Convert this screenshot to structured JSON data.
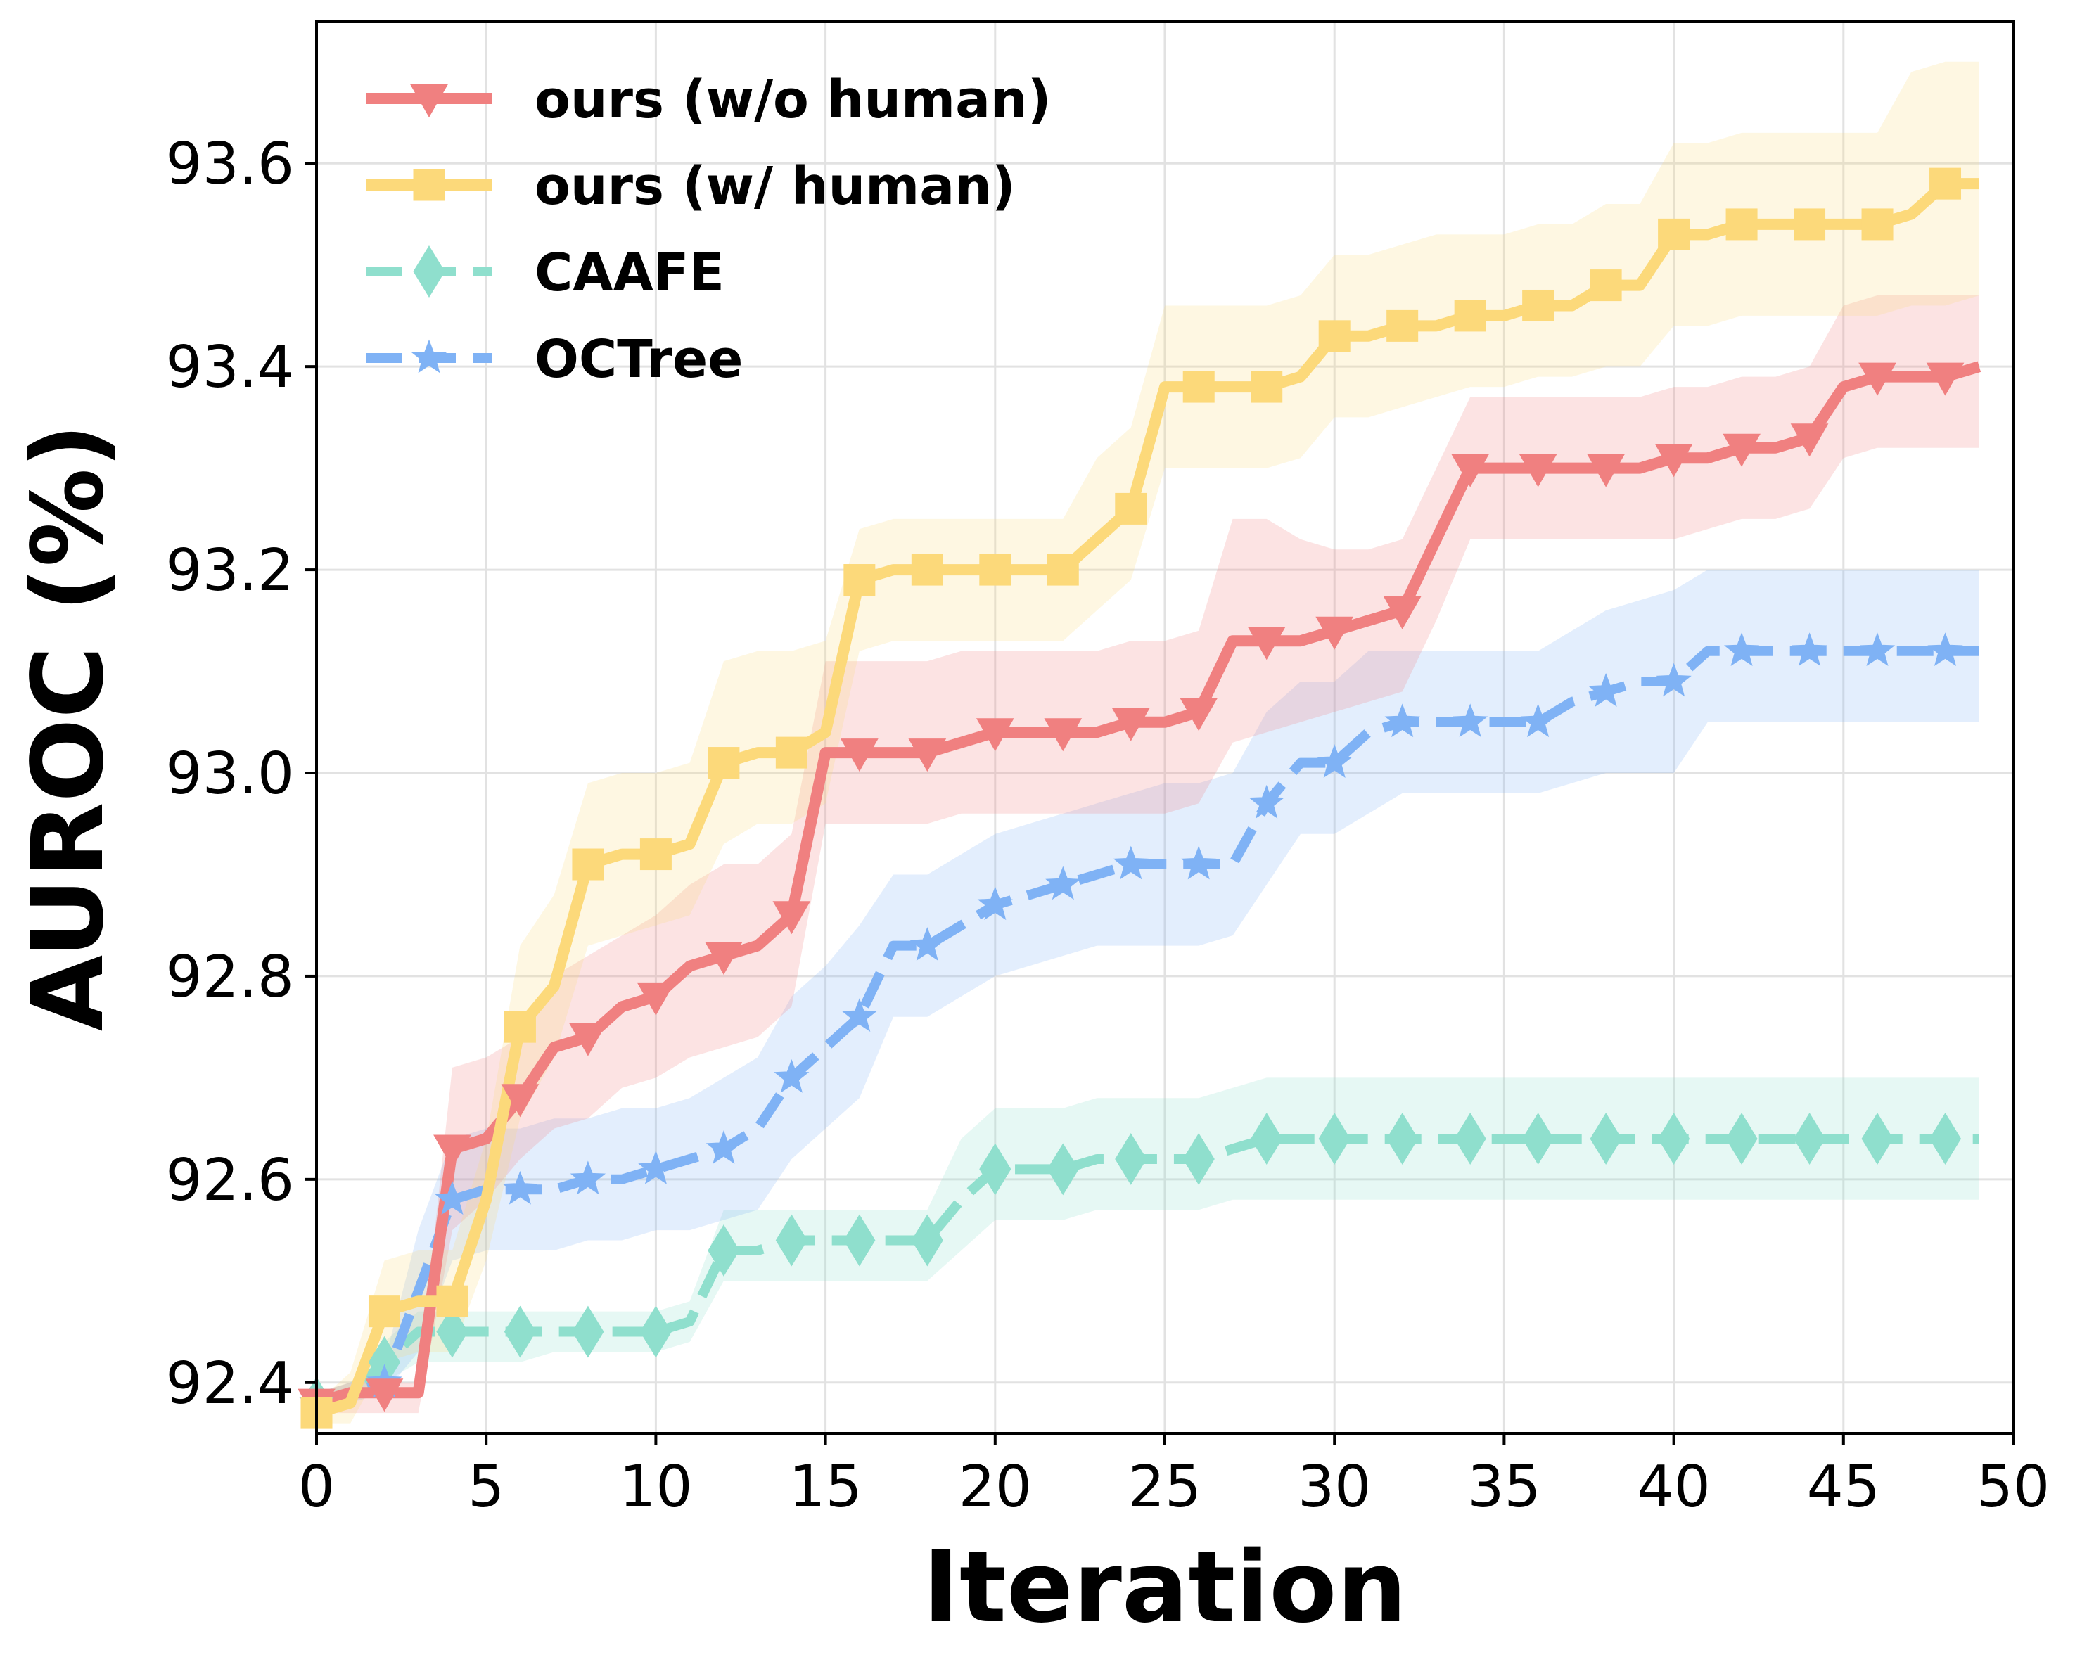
{
  "chart_data": {
    "type": "line",
    "title": "",
    "xlabel": "Iteration",
    "ylabel": "AUROC (%)",
    "xlim": [
      0,
      50
    ],
    "ylim": [
      92.35,
      93.74
    ],
    "xticks": [
      0,
      5,
      10,
      15,
      20,
      25,
      30,
      35,
      40,
      45,
      50
    ],
    "yticks": [
      92.4,
      92.6,
      92.8,
      93.0,
      93.2,
      93.4,
      93.6
    ],
    "ytick_labels": [
      "92.4",
      "92.6",
      "92.8",
      "93.0",
      "93.2",
      "93.4",
      "93.6"
    ],
    "grid": true,
    "legend_position": "top-left",
    "series": [
      {
        "name": "ours (w/o human)",
        "color": "#f08080",
        "marker": "triangle-down",
        "linestyle": "solid",
        "x": [
          0,
          1,
          2,
          3,
          4,
          5,
          6,
          7,
          8,
          9,
          10,
          11,
          12,
          13,
          14,
          15,
          16,
          17,
          18,
          19,
          20,
          21,
          22,
          23,
          24,
          25,
          26,
          27,
          28,
          29,
          30,
          31,
          32,
          33,
          34,
          35,
          36,
          37,
          38,
          39,
          40,
          41,
          42,
          43,
          44,
          45,
          46,
          47,
          48,
          49
        ],
        "values": [
          92.38,
          92.39,
          92.39,
          92.39,
          92.63,
          92.64,
          92.68,
          92.73,
          92.74,
          92.77,
          92.78,
          92.81,
          92.82,
          92.83,
          92.86,
          93.02,
          93.02,
          93.02,
          93.02,
          93.03,
          93.04,
          93.04,
          93.04,
          93.04,
          93.05,
          93.05,
          93.06,
          93.13,
          93.13,
          93.13,
          93.14,
          93.15,
          93.16,
          93.23,
          93.3,
          93.3,
          93.3,
          93.3,
          93.3,
          93.3,
          93.31,
          93.31,
          93.32,
          93.32,
          93.33,
          93.38,
          93.39,
          93.39,
          93.39,
          93.4
        ],
        "lower": [
          92.37,
          92.37,
          92.37,
          92.37,
          92.55,
          92.58,
          92.62,
          92.65,
          92.66,
          92.69,
          92.7,
          92.72,
          92.73,
          92.74,
          92.77,
          92.95,
          92.95,
          92.95,
          92.95,
          92.96,
          92.96,
          92.96,
          92.96,
          92.96,
          92.96,
          92.96,
          92.97,
          93.03,
          93.04,
          93.05,
          93.06,
          93.07,
          93.08,
          93.15,
          93.23,
          93.23,
          93.23,
          93.23,
          93.23,
          93.23,
          93.23,
          93.24,
          93.25,
          93.25,
          93.26,
          93.31,
          93.32,
          93.32,
          93.32,
          93.32
        ],
        "upper": [
          92.39,
          92.4,
          92.4,
          92.4,
          92.71,
          92.72,
          92.74,
          92.8,
          92.82,
          92.84,
          92.86,
          92.89,
          92.91,
          92.91,
          92.94,
          93.11,
          93.11,
          93.11,
          93.11,
          93.12,
          93.12,
          93.12,
          93.12,
          93.12,
          93.13,
          93.13,
          93.14,
          93.25,
          93.25,
          93.23,
          93.22,
          93.22,
          93.23,
          93.3,
          93.37,
          93.37,
          93.37,
          93.37,
          93.37,
          93.37,
          93.38,
          93.38,
          93.39,
          93.39,
          93.4,
          93.46,
          93.47,
          93.47,
          93.47,
          93.47
        ]
      },
      {
        "name": "ours (w/ human)",
        "color": "#fcd97a",
        "marker": "square",
        "linestyle": "solid",
        "x": [
          0,
          1,
          2,
          3,
          4,
          5,
          6,
          7,
          8,
          9,
          10,
          11,
          12,
          13,
          14,
          15,
          16,
          17,
          18,
          19,
          20,
          21,
          22,
          23,
          24,
          25,
          26,
          27,
          28,
          29,
          30,
          31,
          32,
          33,
          34,
          35,
          36,
          37,
          38,
          39,
          40,
          41,
          42,
          43,
          44,
          45,
          46,
          47,
          48,
          49
        ],
        "values": [
          92.37,
          92.38,
          92.47,
          92.48,
          92.48,
          92.58,
          92.75,
          92.79,
          92.91,
          92.92,
          92.92,
          92.93,
          93.01,
          93.02,
          93.02,
          93.04,
          93.19,
          93.2,
          93.2,
          93.2,
          93.2,
          93.2,
          93.2,
          93.23,
          93.26,
          93.38,
          93.38,
          93.38,
          93.38,
          93.39,
          93.43,
          93.43,
          93.44,
          93.44,
          93.45,
          93.45,
          93.46,
          93.46,
          93.48,
          93.48,
          93.53,
          93.53,
          93.54,
          93.54,
          93.54,
          93.54,
          93.54,
          93.55,
          93.58,
          93.58
        ],
        "lower": [
          92.36,
          92.36,
          92.42,
          92.43,
          92.43,
          92.52,
          92.66,
          92.72,
          92.83,
          92.84,
          92.85,
          92.86,
          92.93,
          92.95,
          92.95,
          92.97,
          93.12,
          93.13,
          93.13,
          93.13,
          93.13,
          93.13,
          93.13,
          93.16,
          93.19,
          93.3,
          93.3,
          93.3,
          93.3,
          93.31,
          93.35,
          93.35,
          93.36,
          93.37,
          93.38,
          93.38,
          93.39,
          93.39,
          93.4,
          93.4,
          93.44,
          93.44,
          93.45,
          93.45,
          93.45,
          93.45,
          93.45,
          93.46,
          93.46,
          93.47
        ],
        "upper": [
          92.38,
          92.41,
          92.52,
          92.53,
          92.53,
          92.64,
          92.83,
          92.88,
          92.99,
          93.0,
          93.0,
          93.01,
          93.11,
          93.12,
          93.12,
          93.13,
          93.24,
          93.25,
          93.25,
          93.25,
          93.25,
          93.25,
          93.25,
          93.31,
          93.34,
          93.46,
          93.46,
          93.46,
          93.46,
          93.47,
          93.51,
          93.51,
          93.52,
          93.53,
          93.53,
          93.53,
          93.54,
          93.54,
          93.56,
          93.56,
          93.62,
          93.62,
          93.63,
          93.63,
          93.63,
          93.63,
          93.63,
          93.69,
          93.7,
          93.7
        ]
      },
      {
        "name": "CAAFE",
        "color": "#8fdfcd",
        "marker": "thin-diamond",
        "linestyle": "dashed",
        "x": [
          0,
          1,
          2,
          3,
          4,
          5,
          6,
          7,
          8,
          9,
          10,
          11,
          12,
          13,
          14,
          15,
          16,
          17,
          18,
          19,
          20,
          21,
          22,
          23,
          24,
          25,
          26,
          27,
          28,
          29,
          30,
          31,
          32,
          33,
          34,
          35,
          36,
          37,
          38,
          39,
          40,
          41,
          42,
          43,
          44,
          45,
          46,
          47,
          48,
          49
        ],
        "values": [
          92.38,
          92.39,
          92.42,
          92.45,
          92.45,
          92.45,
          92.45,
          92.45,
          92.45,
          92.45,
          92.45,
          92.46,
          92.53,
          92.53,
          92.54,
          92.54,
          92.54,
          92.54,
          92.54,
          92.58,
          92.61,
          92.61,
          92.61,
          92.62,
          92.62,
          92.62,
          92.62,
          92.63,
          92.64,
          92.64,
          92.64,
          92.64,
          92.64,
          92.64,
          92.64,
          92.64,
          92.64,
          92.64,
          92.64,
          92.64,
          92.64,
          92.64,
          92.64,
          92.64,
          92.64,
          92.64,
          92.64,
          92.64,
          92.64,
          92.64
        ],
        "lower": [
          92.37,
          92.38,
          92.4,
          92.42,
          92.42,
          92.42,
          92.42,
          92.43,
          92.43,
          92.43,
          92.43,
          92.44,
          92.5,
          92.5,
          92.5,
          92.5,
          92.5,
          92.5,
          92.5,
          92.53,
          92.56,
          92.56,
          92.56,
          92.57,
          92.57,
          92.57,
          92.57,
          92.58,
          92.58,
          92.58,
          92.58,
          92.58,
          92.58,
          92.58,
          92.58,
          92.58,
          92.58,
          92.58,
          92.58,
          92.58,
          92.58,
          92.58,
          92.58,
          92.58,
          92.58,
          92.58,
          92.58,
          92.58,
          92.58,
          92.58
        ],
        "upper": [
          92.39,
          92.4,
          92.44,
          92.47,
          92.47,
          92.47,
          92.47,
          92.47,
          92.47,
          92.47,
          92.47,
          92.48,
          92.57,
          92.57,
          92.57,
          92.57,
          92.57,
          92.57,
          92.57,
          92.64,
          92.67,
          92.67,
          92.67,
          92.68,
          92.68,
          92.68,
          92.68,
          92.69,
          92.7,
          92.7,
          92.7,
          92.7,
          92.7,
          92.7,
          92.7,
          92.7,
          92.7,
          92.7,
          92.7,
          92.7,
          92.7,
          92.7,
          92.7,
          92.7,
          92.7,
          92.7,
          92.7,
          92.7,
          92.7,
          92.7
        ]
      },
      {
        "name": "OCTree",
        "color": "#7fb2f5",
        "marker": "star",
        "linestyle": "dashed",
        "x": [
          0,
          1,
          2,
          3,
          4,
          5,
          6,
          7,
          8,
          9,
          10,
          11,
          12,
          13,
          14,
          15,
          16,
          17,
          18,
          19,
          20,
          21,
          22,
          23,
          24,
          25,
          26,
          27,
          28,
          29,
          30,
          31,
          32,
          33,
          34,
          35,
          36,
          37,
          38,
          39,
          40,
          41,
          42,
          43,
          44,
          45,
          46,
          47,
          48,
          49
        ],
        "values": [
          92.38,
          92.39,
          92.4,
          92.49,
          92.58,
          92.59,
          92.59,
          92.59,
          92.6,
          92.6,
          92.61,
          92.62,
          92.63,
          92.65,
          92.7,
          92.73,
          92.76,
          92.83,
          92.83,
          92.85,
          92.87,
          92.88,
          92.89,
          92.9,
          92.91,
          92.91,
          92.91,
          92.91,
          92.97,
          93.01,
          93.01,
          93.04,
          93.05,
          93.05,
          93.05,
          93.05,
          93.05,
          93.07,
          93.08,
          93.09,
          93.09,
          93.12,
          93.12,
          93.12,
          93.12,
          93.12,
          93.12,
          93.12,
          93.12,
          93.12
        ],
        "lower": [
          92.37,
          92.38,
          92.39,
          92.43,
          92.52,
          92.53,
          92.53,
          92.53,
          92.54,
          92.54,
          92.55,
          92.55,
          92.56,
          92.57,
          92.62,
          92.65,
          92.68,
          92.76,
          92.76,
          92.78,
          92.8,
          92.81,
          92.82,
          92.83,
          92.83,
          92.83,
          92.83,
          92.84,
          92.89,
          92.94,
          92.94,
          92.96,
          92.98,
          92.98,
          92.98,
          92.98,
          92.98,
          92.99,
          93.0,
          93.0,
          93.0,
          93.05,
          93.05,
          93.05,
          93.05,
          93.05,
          93.05,
          93.05,
          93.05,
          93.05
        ],
        "upper": [
          92.39,
          92.4,
          92.42,
          92.55,
          92.64,
          92.65,
          92.65,
          92.66,
          92.66,
          92.67,
          92.67,
          92.68,
          92.7,
          92.72,
          92.78,
          92.81,
          92.85,
          92.9,
          92.9,
          92.92,
          92.94,
          92.95,
          92.96,
          92.97,
          92.98,
          92.99,
          92.99,
          93.0,
          93.06,
          93.09,
          93.09,
          93.12,
          93.12,
          93.12,
          93.12,
          93.12,
          93.12,
          93.14,
          93.16,
          93.17,
          93.18,
          93.2,
          93.2,
          93.2,
          93.2,
          93.2,
          93.2,
          93.2,
          93.2,
          93.2
        ]
      }
    ]
  }
}
